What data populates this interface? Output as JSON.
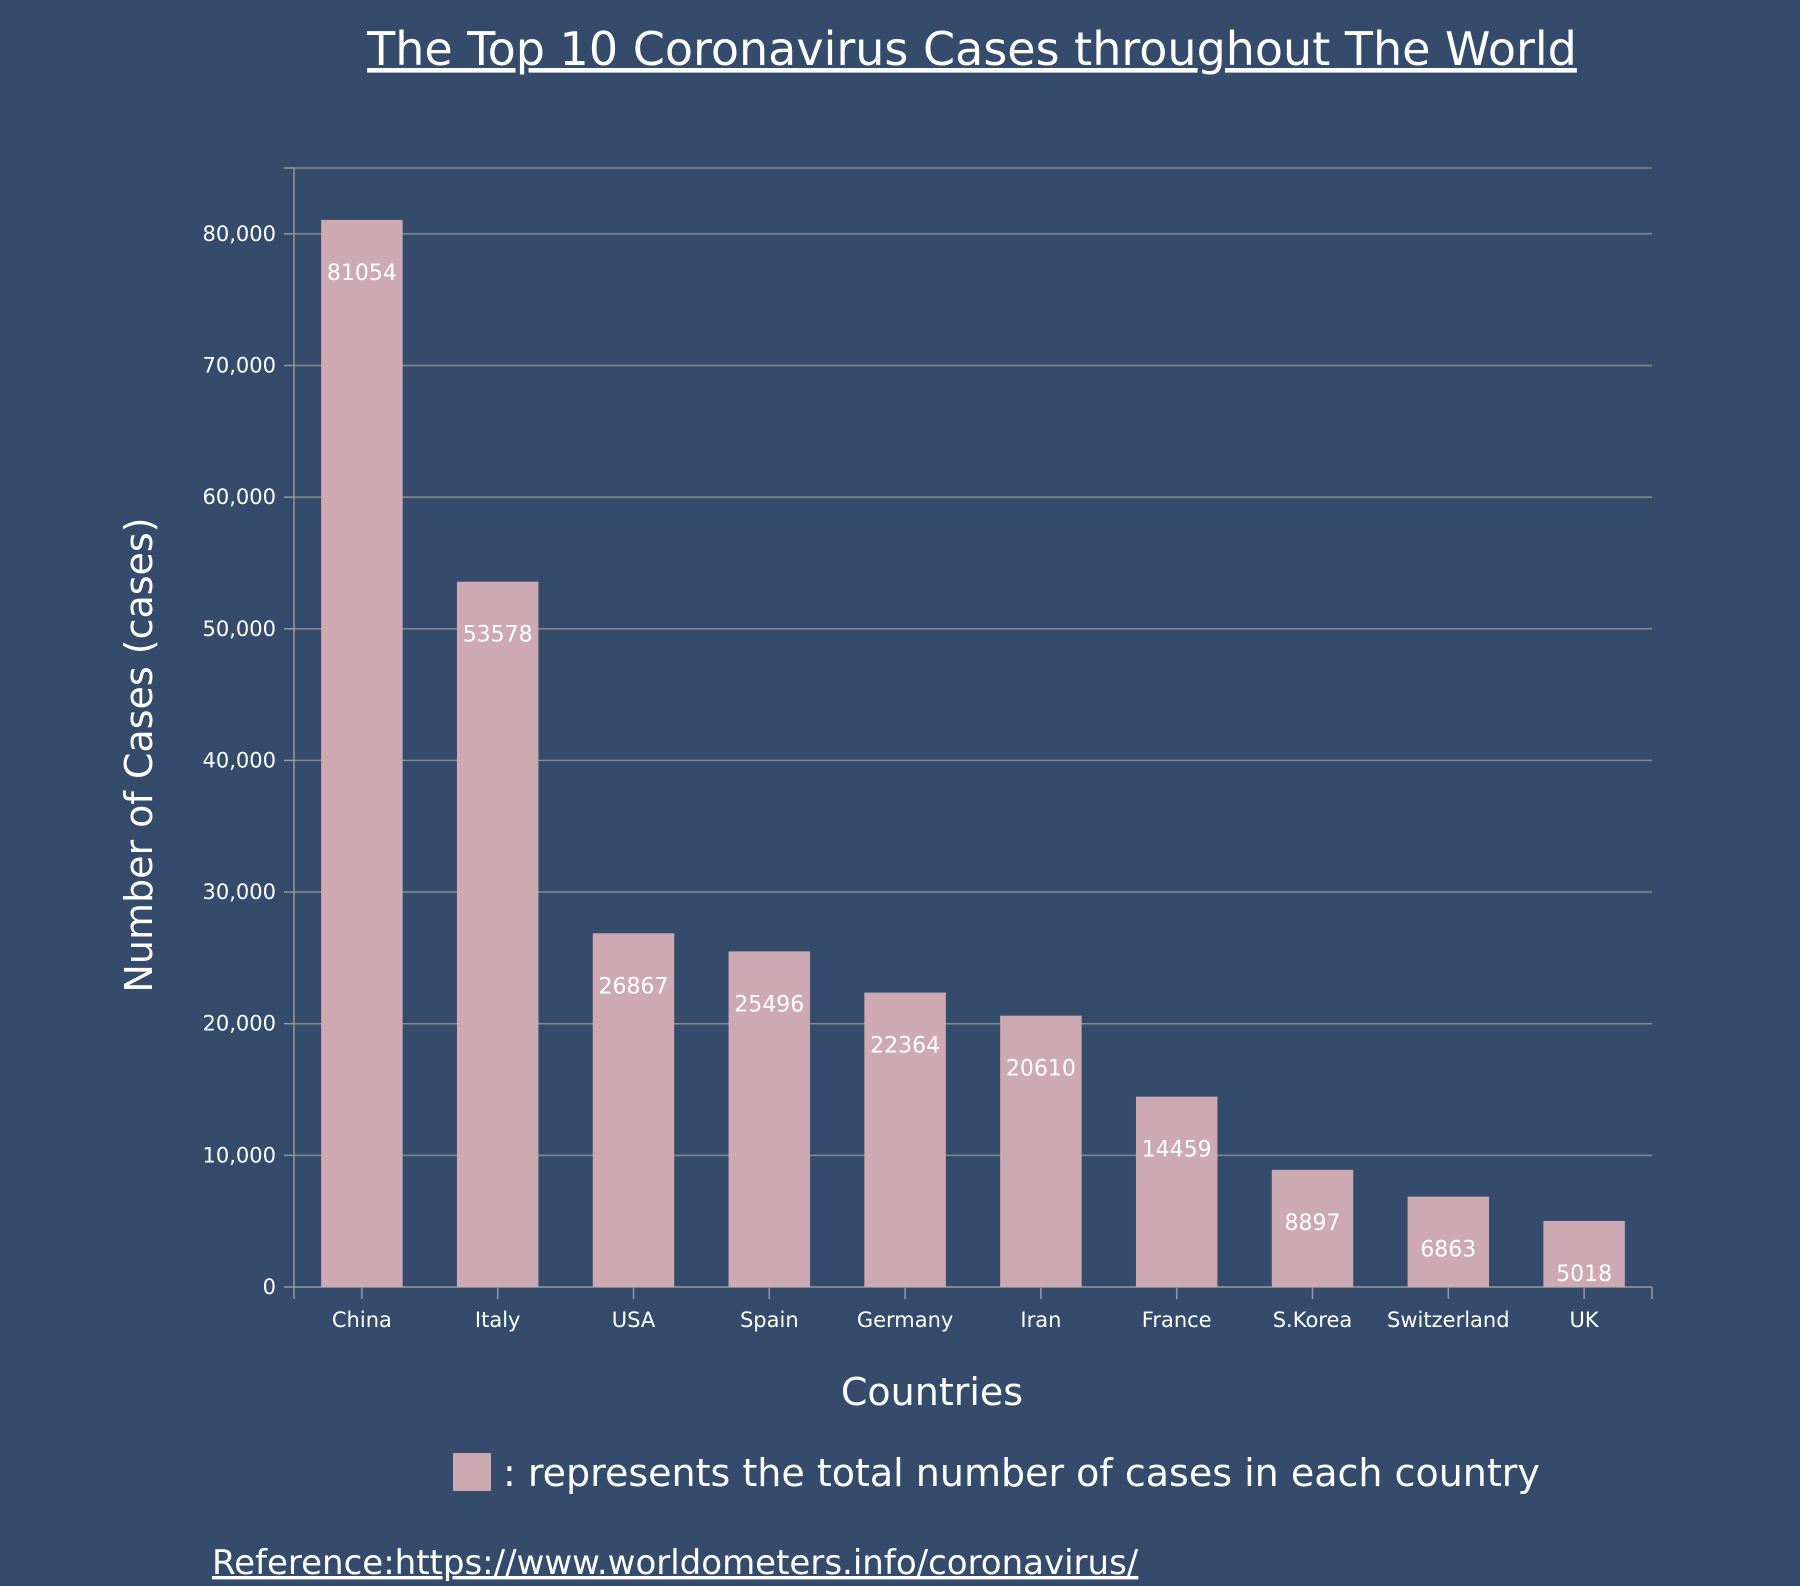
{
  "chart_data": {
    "type": "bar",
    "title": "The Top 10 Coronavirus Cases throughout The World",
    "xlabel": "Countries",
    "ylabel": "Number of Cases (cases)",
    "categories": [
      "China",
      "Italy",
      "USA",
      "Spain",
      "Germany",
      "Iran",
      "France",
      "S.Korea",
      "Switzerland",
      "UK"
    ],
    "values": [
      81054,
      53578,
      26867,
      25496,
      22364,
      20610,
      14459,
      8897,
      6863,
      5018
    ],
    "ylim": [
      0,
      85000
    ],
    "yticks": [
      0,
      10000,
      20000,
      30000,
      40000,
      50000,
      60000,
      70000,
      80000
    ],
    "ytick_labels": [
      "0",
      "10,000",
      "20,000",
      "30,000",
      "40,000",
      "50,000",
      "60,000",
      "70,000",
      "80,000"
    ],
    "grid": true,
    "bar_color": "#cdaab3",
    "background_color": "#344b6b",
    "legend": {
      "text": ": represents the total number of cases in each country",
      "placement": "bottom"
    }
  },
  "reference": {
    "text": "Reference:https://www.worldometers.info/coronavirus/"
  }
}
